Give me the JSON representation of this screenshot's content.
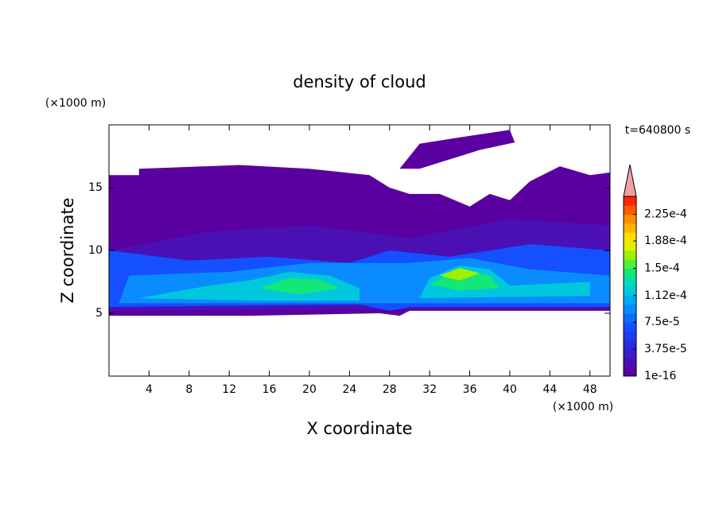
{
  "chart_data": {
    "type": "contour",
    "title": "density of cloud",
    "xlabel": "X coordinate",
    "ylabel": "Z coordinate",
    "xunit": "(×1000 m)",
    "yunit": "(×1000 m)",
    "annotation": "t=640800 s",
    "xlim": [
      0,
      50
    ],
    "ylim": [
      0,
      20
    ],
    "xticks": [
      4,
      8,
      12,
      16,
      20,
      24,
      28,
      32,
      36,
      40,
      44,
      48
    ],
    "yticks": [
      5,
      10,
      15
    ],
    "colorbar": {
      "clim": [
        0,
        0.00025
      ],
      "ticks": [
        1e-16,
        {
          "value": 3.75e-05,
          "label": "3.75e-5"
        },
        {
          "value": 7.5e-05,
          "label": "7.5e-5"
        },
        {
          "value": 0.000112,
          "label": "1.12e-4"
        },
        {
          "value": 0.00015,
          "label": "1.5e-4"
        },
        {
          "value": 0.000188,
          "label": "1.88e-4"
        },
        {
          "value": 0.000225,
          "label": "2.25e-4"
        }
      ],
      "levels": [
        1e-16,
        1.25e-05,
        2.5e-05,
        3.75e-05,
        5e-05,
        6.25e-05,
        7.5e-05,
        8.75e-05,
        0.0001,
        0.0001125,
        0.000125,
        0.0001375,
        0.00015,
        0.0001625,
        0.000175,
        0.0001875,
        0.0002,
        0.0002125,
        0.000225,
        0.0002375
      ],
      "colors": [
        "#5a00a0",
        "#4a10b4",
        "#3a1ec8",
        "#2a2cdc",
        "#1e3cf0",
        "#1450ff",
        "#0a6eff",
        "#0a8cff",
        "#00aaf0",
        "#00c8dc",
        "#00dcb4",
        "#14e678",
        "#50f03c",
        "#a0f000",
        "#dcf000",
        "#ffe000",
        "#ffb400",
        "#ff8c00",
        "#ff5a00",
        "#ff2800"
      ],
      "extend_color": "#f4a0a0"
    },
    "contours": [
      {
        "level": 1e-16,
        "points": [
          [
            0,
            4.8
          ],
          [
            0,
            16
          ],
          [
            3,
            16
          ],
          [
            3,
            16.5
          ],
          [
            13,
            16.8
          ],
          [
            20,
            16.5
          ],
          [
            26,
            16
          ],
          [
            28,
            15
          ],
          [
            30,
            14.5
          ],
          [
            33,
            14.5
          ],
          [
            36,
            13.5
          ],
          [
            38,
            14.5
          ],
          [
            40,
            14
          ],
          [
            42,
            15.5
          ],
          [
            45,
            16.7
          ],
          [
            48,
            16
          ],
          [
            50,
            16.2
          ],
          [
            50,
            5.2
          ],
          [
            30,
            5.2
          ],
          [
            29,
            4.8
          ],
          [
            27,
            5
          ],
          [
            14,
            4.8
          ]
        ]
      },
      {
        "level": 1e-16,
        "points": [
          [
            29,
            16.5
          ],
          [
            31,
            18.5
          ],
          [
            35,
            19
          ],
          [
            40,
            19.6
          ],
          [
            40.5,
            18.6
          ],
          [
            37,
            18
          ],
          [
            33,
            17
          ],
          [
            31,
            16.5
          ]
        ]
      },
      {
        "level": 1.25e-05,
        "points": [
          [
            0,
            5.2
          ],
          [
            0,
            10
          ],
          [
            10,
            11.5
          ],
          [
            20,
            12
          ],
          [
            30,
            11
          ],
          [
            40,
            12.5
          ],
          [
            50,
            12
          ],
          [
            50,
            5.4
          ]
        ]
      },
      {
        "level": 6.25e-05,
        "points": [
          [
            0,
            5.5
          ],
          [
            0,
            10
          ],
          [
            8,
            9.2
          ],
          [
            16,
            9.5
          ],
          [
            24,
            9
          ],
          [
            28,
            10
          ],
          [
            34,
            9.5
          ],
          [
            42,
            10.5
          ],
          [
            50,
            10
          ],
          [
            50,
            5.5
          ],
          [
            30,
            5.5
          ],
          [
            28,
            5.2
          ],
          [
            25,
            5.7
          ]
        ]
      },
      {
        "level": 8.75e-05,
        "points": [
          [
            1,
            5.8
          ],
          [
            2,
            8
          ],
          [
            12,
            8.3
          ],
          [
            20,
            9
          ],
          [
            30,
            9
          ],
          [
            36,
            9.4
          ],
          [
            42,
            8.5
          ],
          [
            50,
            8
          ],
          [
            50,
            5.8
          ]
        ]
      },
      {
        "level": 0.0001125,
        "points": [
          [
            3,
            6.2
          ],
          [
            10,
            7.2
          ],
          [
            14,
            7.6
          ],
          [
            18,
            8.3
          ],
          [
            22,
            8
          ],
          [
            25,
            7
          ],
          [
            25,
            6
          ],
          [
            15,
            6
          ]
        ]
      },
      {
        "level": 0.0001125,
        "points": [
          [
            31,
            6.2
          ],
          [
            32,
            7.8
          ],
          [
            35,
            8.8
          ],
          [
            38,
            8.5
          ],
          [
            40,
            7.2
          ],
          [
            48,
            7.5
          ],
          [
            48,
            6.4
          ]
        ]
      },
      {
        "level": 0.0001375,
        "points": [
          [
            15,
            7
          ],
          [
            18,
            7.8
          ],
          [
            21,
            7.7
          ],
          [
            23,
            7
          ],
          [
            19,
            6.5
          ]
        ]
      },
      {
        "level": 0.0001375,
        "points": [
          [
            32,
            7.3
          ],
          [
            35,
            8.5
          ],
          [
            38,
            8
          ],
          [
            39,
            7
          ],
          [
            35,
            6.8
          ]
        ]
      },
      {
        "level": 0.0001625,
        "points": [
          [
            33,
            8
          ],
          [
            35,
            8.6
          ],
          [
            37,
            8.2
          ],
          [
            35,
            7.6
          ]
        ]
      }
    ]
  }
}
